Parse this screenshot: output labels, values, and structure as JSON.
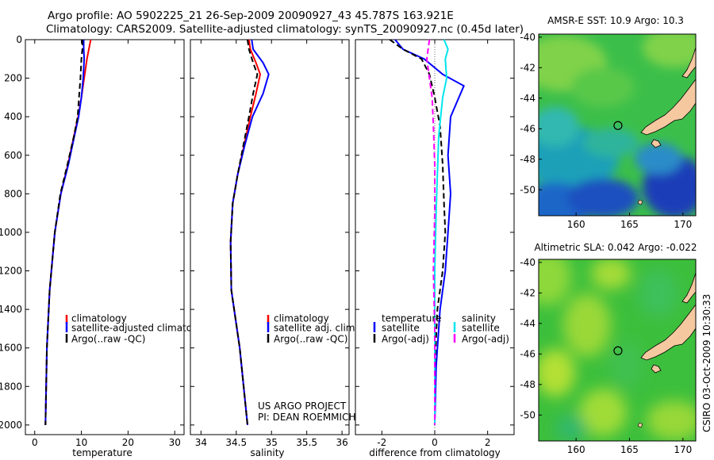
{
  "header": {
    "title_line1": "Argo profile: AO 5902225_21 26-Sep-2009 20090927_43 45.787S 163.921E",
    "title_line2": "Climatology: CARS2009. Satellite-adjusted climatology: synTS_20090927.nc (0.45d later)"
  },
  "footer": {
    "project": "US ARGO PROJECT",
    "pi": "PI: DEAN ROEMMICH",
    "credit": "CSIRO 03-Oct-2009 10:30:33"
  },
  "colors": {
    "climatology": "#ff0000",
    "satellite": "#0000ff",
    "argo": "#000000",
    "satellite_diff_sal": "#00e5ee",
    "argo_diff_sal": "#ff00ff",
    "land": "#f5c8a0"
  },
  "chart_data": [
    {
      "type": "line",
      "title": "",
      "xlabel": "temperature",
      "ylabel": "",
      "xlim": [
        -2,
        32
      ],
      "ylim": [
        2050,
        0
      ],
      "xticks": [
        0,
        10,
        20,
        30
      ],
      "yticks": [
        0,
        200,
        400,
        600,
        800,
        1000,
        1200,
        1400,
        1600,
        1800,
        2000
      ],
      "legend": [
        "climatology",
        "satellite-adjusted climatology",
        "Argo(..raw -QC)"
      ],
      "series": [
        {
          "name": "climatology",
          "color": "#ff0000",
          "dash": "none",
          "x": [
            12.0,
            11.6,
            11.2,
            10.6,
            10.0,
            9.3,
            8.4,
            7.1,
            5.6,
            4.3,
            3.2,
            2.6,
            2.3
          ],
          "y": [
            0,
            50,
            100,
            200,
            300,
            400,
            500,
            650,
            800,
            1000,
            1300,
            1600,
            2000
          ]
        },
        {
          "name": "satellite-adjusted climatology",
          "color": "#0000ff",
          "dash": "none",
          "x": [
            10.5,
            10.5,
            10.6,
            10.4,
            10.0,
            9.4,
            8.5,
            7.2,
            5.6,
            4.3,
            3.2,
            2.6,
            2.3
          ],
          "y": [
            0,
            50,
            100,
            200,
            300,
            400,
            500,
            650,
            800,
            1000,
            1300,
            1600,
            2000
          ]
        },
        {
          "name": "Argo(..raw -QC)",
          "color": "#000000",
          "dash": "7,4",
          "x": [
            10.2,
            10.2,
            10.0,
            9.8,
            9.5,
            9.2,
            8.4,
            7.0,
            5.5,
            4.3,
            3.2,
            2.6,
            2.3
          ],
          "y": [
            0,
            50,
            100,
            200,
            300,
            400,
            500,
            650,
            800,
            1000,
            1300,
            1600,
            2000
          ]
        }
      ]
    },
    {
      "type": "line",
      "title": "",
      "xlabel": "salinity",
      "ylabel": "",
      "xlim": [
        33.85,
        36.1
      ],
      "ylim": [
        2050,
        0
      ],
      "xticks": [
        34,
        34.5,
        35,
        35.5,
        36
      ],
      "legend": [
        "climatology",
        "satellite adj. clim.",
        "Argo(..raw -QC)"
      ],
      "series": [
        {
          "name": "climatology",
          "color": "#ff0000",
          "dash": "none",
          "x": [
            34.68,
            34.7,
            34.78,
            34.84,
            34.78,
            34.7,
            34.61,
            34.52,
            34.45,
            34.42,
            34.43,
            34.55,
            34.66
          ],
          "y": [
            0,
            50,
            120,
            180,
            280,
            400,
            550,
            700,
            850,
            1050,
            1300,
            1600,
            2000
          ]
        },
        {
          "name": "satellite adj. clim.",
          "color": "#0000ff",
          "dash": "none",
          "x": [
            34.72,
            34.74,
            34.88,
            34.96,
            34.88,
            34.73,
            34.62,
            34.52,
            34.45,
            34.42,
            34.43,
            34.55,
            34.66
          ],
          "y": [
            0,
            50,
            120,
            180,
            280,
            400,
            550,
            700,
            850,
            1050,
            1300,
            1600,
            2000
          ]
        },
        {
          "name": "Argo(..raw -QC)",
          "color": "#000000",
          "dash": "7,4",
          "x": [
            34.66,
            34.68,
            34.74,
            34.8,
            34.74,
            34.68,
            34.6,
            34.52,
            34.45,
            34.42,
            34.43,
            34.55,
            34.66
          ],
          "y": [
            0,
            50,
            120,
            180,
            280,
            400,
            550,
            700,
            850,
            1050,
            1300,
            1600,
            2000
          ]
        }
      ]
    },
    {
      "type": "line",
      "title": "",
      "xlabel": "difference from climatology",
      "ylabel": "",
      "xlim": [
        -3,
        3
      ],
      "ylim": [
        2050,
        0
      ],
      "xticks": [
        -2,
        0,
        2
      ],
      "legend_temperature": {
        "heading": "temperature",
        "entries": [
          "satellite",
          "Argo(-adj)"
        ]
      },
      "legend_salinity": {
        "heading": "salinity",
        "entries": [
          "satellite",
          "Argo(-adj)"
        ]
      },
      "series": [
        {
          "name": "temperature satellite",
          "color": "#0000ff",
          "dash": "none",
          "x": [
            -1.5,
            -1.2,
            -0.4,
            0.3,
            1.1,
            0.6,
            0.5,
            0.6,
            0.5,
            0.4,
            0.2,
            0.05,
            0.0
          ],
          "y": [
            0,
            50,
            100,
            180,
            240,
            400,
            600,
            800,
            1000,
            1200,
            1400,
            1700,
            2000
          ]
        },
        {
          "name": "temperature Argo(-adj)",
          "color": "#000000",
          "dash": "7,4",
          "x": [
            -1.7,
            -1.2,
            -0.5,
            -0.2,
            0.0,
            0.2,
            0.3,
            0.35,
            0.4,
            0.3,
            0.1,
            0.0,
            0.0
          ],
          "y": [
            0,
            50,
            100,
            180,
            300,
            450,
            650,
            850,
            1000,
            1200,
            1400,
            1700,
            2000
          ]
        },
        {
          "name": "salinity satellite",
          "color": "#00e5ee",
          "dash": "none",
          "x": [
            0.35,
            0.5,
            0.4,
            0.45,
            0.3,
            0.15,
            0.1,
            0.05,
            0.0,
            0.0,
            0.0,
            0.0
          ],
          "y": [
            0,
            50,
            100,
            200,
            300,
            500,
            700,
            900,
            1200,
            1500,
            1800,
            2000
          ]
        },
        {
          "name": "salinity Argo(-adj)",
          "color": "#ff00ff",
          "dash": "7,4",
          "x": [
            -0.2,
            -0.3,
            -0.2,
            -0.1,
            -0.05,
            0.0,
            0.0,
            -0.05,
            0.0,
            0.0,
            0.0
          ],
          "y": [
            0,
            100,
            200,
            300,
            450,
            650,
            900,
            1200,
            1500,
            1800,
            2000
          ]
        }
      ]
    },
    {
      "type": "heatmap",
      "title": "AMSR-E SST: 10.9 Argo: 10.3",
      "xlim": [
        156.5,
        171.2
      ],
      "ylim": [
        -51.7,
        -39.8
      ],
      "xticks": [
        160,
        165,
        170
      ],
      "yticks": [
        -40,
        -42,
        -44,
        -46,
        -48,
        -50
      ],
      "profile_marker": {
        "lon": 163.92,
        "lat": -45.79
      }
    },
    {
      "type": "heatmap",
      "title": "Altimetric SLA: 0.042 Argo: -0.022",
      "xlim": [
        156.5,
        171.2
      ],
      "ylim": [
        -51.7,
        -39.8
      ],
      "xticks": [
        160,
        165,
        170
      ],
      "yticks": [
        -40,
        -42,
        -44,
        -46,
        -48,
        -50
      ],
      "profile_marker": {
        "lon": 163.92,
        "lat": -45.79
      }
    }
  ]
}
